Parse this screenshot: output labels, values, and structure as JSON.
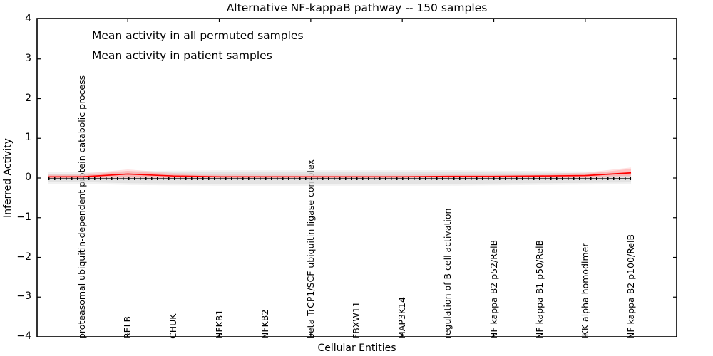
{
  "title": "Alternative NF-kappaB pathway -- 150 samples",
  "axes": {
    "xlabel": "Cellular Entities",
    "ylabel": "Inferred Activity"
  },
  "chart_data": {
    "type": "line",
    "title": "Alternative NF-kappaB pathway -- 150 samples",
    "xlabel": "Cellular Entities",
    "ylabel": "Inferred Activity",
    "ylim": [
      -4,
      4
    ],
    "yticks": [
      4,
      3,
      2,
      1,
      0,
      -1,
      -2,
      -3,
      -4
    ],
    "grid": false,
    "legend_position": "upper left",
    "categories": [
      "proteasomal ubiquitin-dependent protein catabolic process",
      "RELB",
      "CHUK",
      "NFKB1",
      "NFKB2",
      "beta TrCP1/SCF ubiquitin ligase complex",
      "FBXW11",
      "MAP3K14",
      "regulation of B cell activation",
      "NF kappa B2 p52/RelB",
      "NF kappa B1 p50/RelB",
      "IKK alpha homodimer",
      "NF kappa B2 p100/RelB"
    ],
    "series": [
      {
        "name": "Mean activity in all permuted samples",
        "color": "#000000",
        "style": "dotted",
        "values": [
          -0.01,
          -0.01,
          -0.01,
          -0.01,
          -0.01,
          -0.01,
          -0.01,
          -0.01,
          -0.01,
          -0.01,
          -0.01,
          -0.01,
          -0.01
        ],
        "band_upper": [
          0.1,
          0.13,
          0.14,
          0.15,
          0.15,
          0.15,
          0.15,
          0.15,
          0.15,
          0.14,
          0.13,
          0.12,
          0.11
        ],
        "band_lower": [
          -0.1,
          -0.13,
          -0.14,
          -0.15,
          -0.15,
          -0.15,
          -0.15,
          -0.15,
          -0.15,
          -0.14,
          -0.13,
          -0.12,
          -0.11
        ],
        "band_color": "#dcdcdc"
      },
      {
        "name": "Mean activity in patient samples",
        "color": "#ff0000",
        "style": "solid",
        "values": [
          0.03,
          0.1,
          0.05,
          0.03,
          0.03,
          0.03,
          0.03,
          0.03,
          0.04,
          0.04,
          0.05,
          0.06,
          0.13
        ],
        "band_upper": [
          0.07,
          0.18,
          0.09,
          0.06,
          0.05,
          0.05,
          0.05,
          0.05,
          0.06,
          0.06,
          0.07,
          0.1,
          0.23
        ],
        "band_lower": [
          0.0,
          0.03,
          0.01,
          0.01,
          0.01,
          0.01,
          0.01,
          0.01,
          0.01,
          0.01,
          0.02,
          0.03,
          0.06
        ],
        "band_color": "#ff9f9f"
      }
    ]
  }
}
